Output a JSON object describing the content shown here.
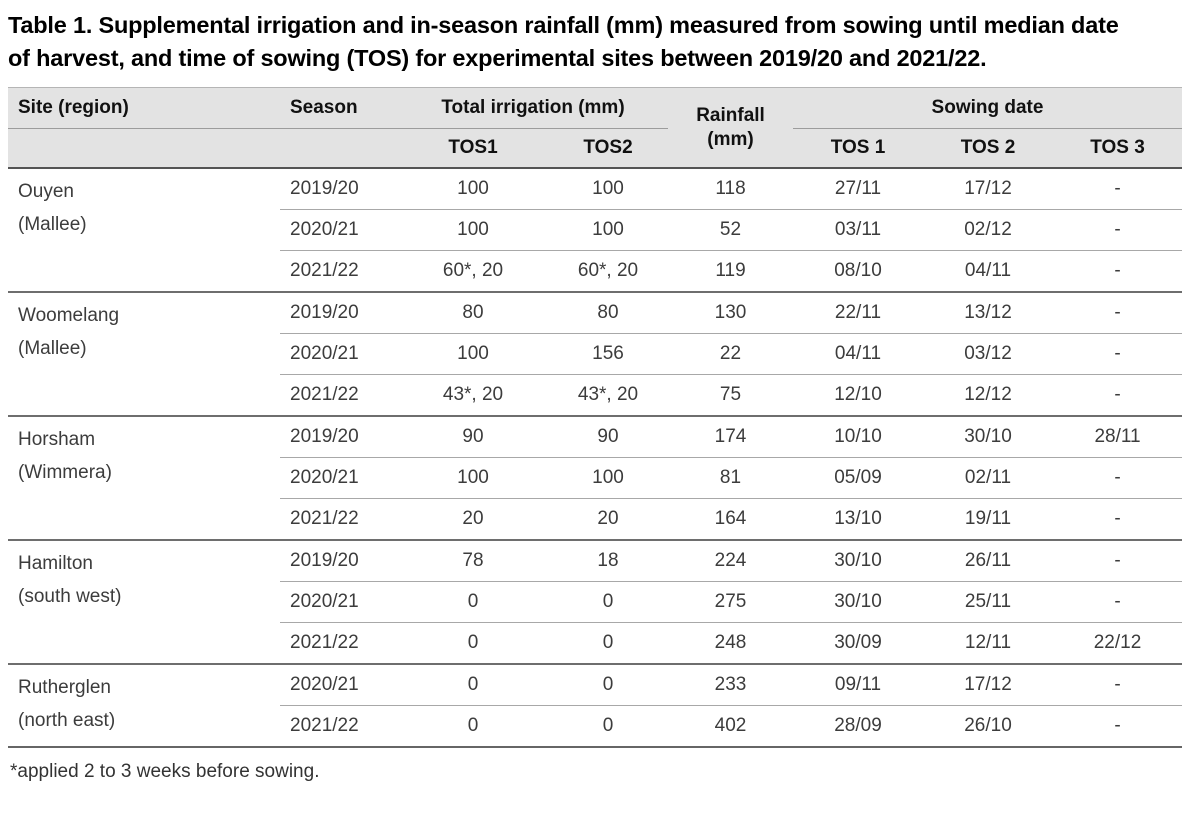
{
  "title": "Table 1. Supplemental irrigation and in-season rainfall (mm) measured from sowing until median date of harvest, and time of sowing (TOS) for experimental sites between 2019/20 and 2021/22.",
  "footnote": "*applied 2 to 3 weeks before sowing.",
  "colors": {
    "header_background": "#e3e3e3",
    "body_text": "#3c3c3c",
    "title_text": "#000000",
    "divider_light": "#a8a8a8",
    "divider_dark": "#6e6e6e"
  },
  "table": {
    "header": {
      "site": "Site (region)",
      "season": "Season",
      "irrigation_group": "Total irrigation (mm)",
      "irrigation_cols": [
        "TOS1",
        "TOS2"
      ],
      "rainfall_line1": "Rainfall",
      "rainfall_line2": "(mm)",
      "sowing_group": "Sowing date",
      "sowing_cols": [
        "TOS 1",
        "TOS 2",
        "TOS 3"
      ]
    },
    "groups": [
      {
        "site": "Ouyen",
        "region": "(Mallee)",
        "rows": [
          [
            "2019/20",
            "100",
            "100",
            "118",
            "27/11",
            "17/12",
            "-"
          ],
          [
            "2020/21",
            "100",
            "100",
            "52",
            "03/11",
            "02/12",
            "-"
          ],
          [
            "2021/22",
            "60*, 20",
            "60*, 20",
            "119",
            "08/10",
            "04/11",
            "-"
          ]
        ]
      },
      {
        "site": "Woomelang",
        "region": "(Mallee)",
        "rows": [
          [
            "2019/20",
            "80",
            "80",
            "130",
            "22/11",
            "13/12",
            "-"
          ],
          [
            "2020/21",
            "100",
            "156",
            "22",
            "04/11",
            "03/12",
            "-"
          ],
          [
            "2021/22",
            "43*, 20",
            "43*, 20",
            "75",
            "12/10",
            "12/12",
            "-"
          ]
        ]
      },
      {
        "site": "Horsham",
        "region": "(Wimmera)",
        "rows": [
          [
            "2019/20",
            "90",
            "90",
            "174",
            "10/10",
            "30/10",
            "28/11"
          ],
          [
            "2020/21",
            "100",
            "100",
            "81",
            "05/09",
            "02/11",
            "-"
          ],
          [
            "2021/22",
            "20",
            "20",
            "164",
            "13/10",
            "19/11",
            "-"
          ]
        ]
      },
      {
        "site": "Hamilton",
        "region": "(south west)",
        "rows": [
          [
            "2019/20",
            "78",
            "18",
            "224",
            "30/10",
            "26/11",
            "-"
          ],
          [
            "2020/21",
            "0",
            "0",
            "275",
            "30/10",
            "25/11",
            "-"
          ],
          [
            "2021/22",
            "0",
            "0",
            "248",
            "30/09",
            "12/11",
            "22/12"
          ]
        ]
      },
      {
        "site": "Rutherglen",
        "region": "(north east)",
        "rows": [
          [
            "2020/21",
            "0",
            "0",
            "233",
            "09/11",
            "17/12",
            "-"
          ],
          [
            "2021/22",
            "0",
            "0",
            "402",
            "28/09",
            "26/10",
            "-"
          ]
        ]
      }
    ]
  }
}
